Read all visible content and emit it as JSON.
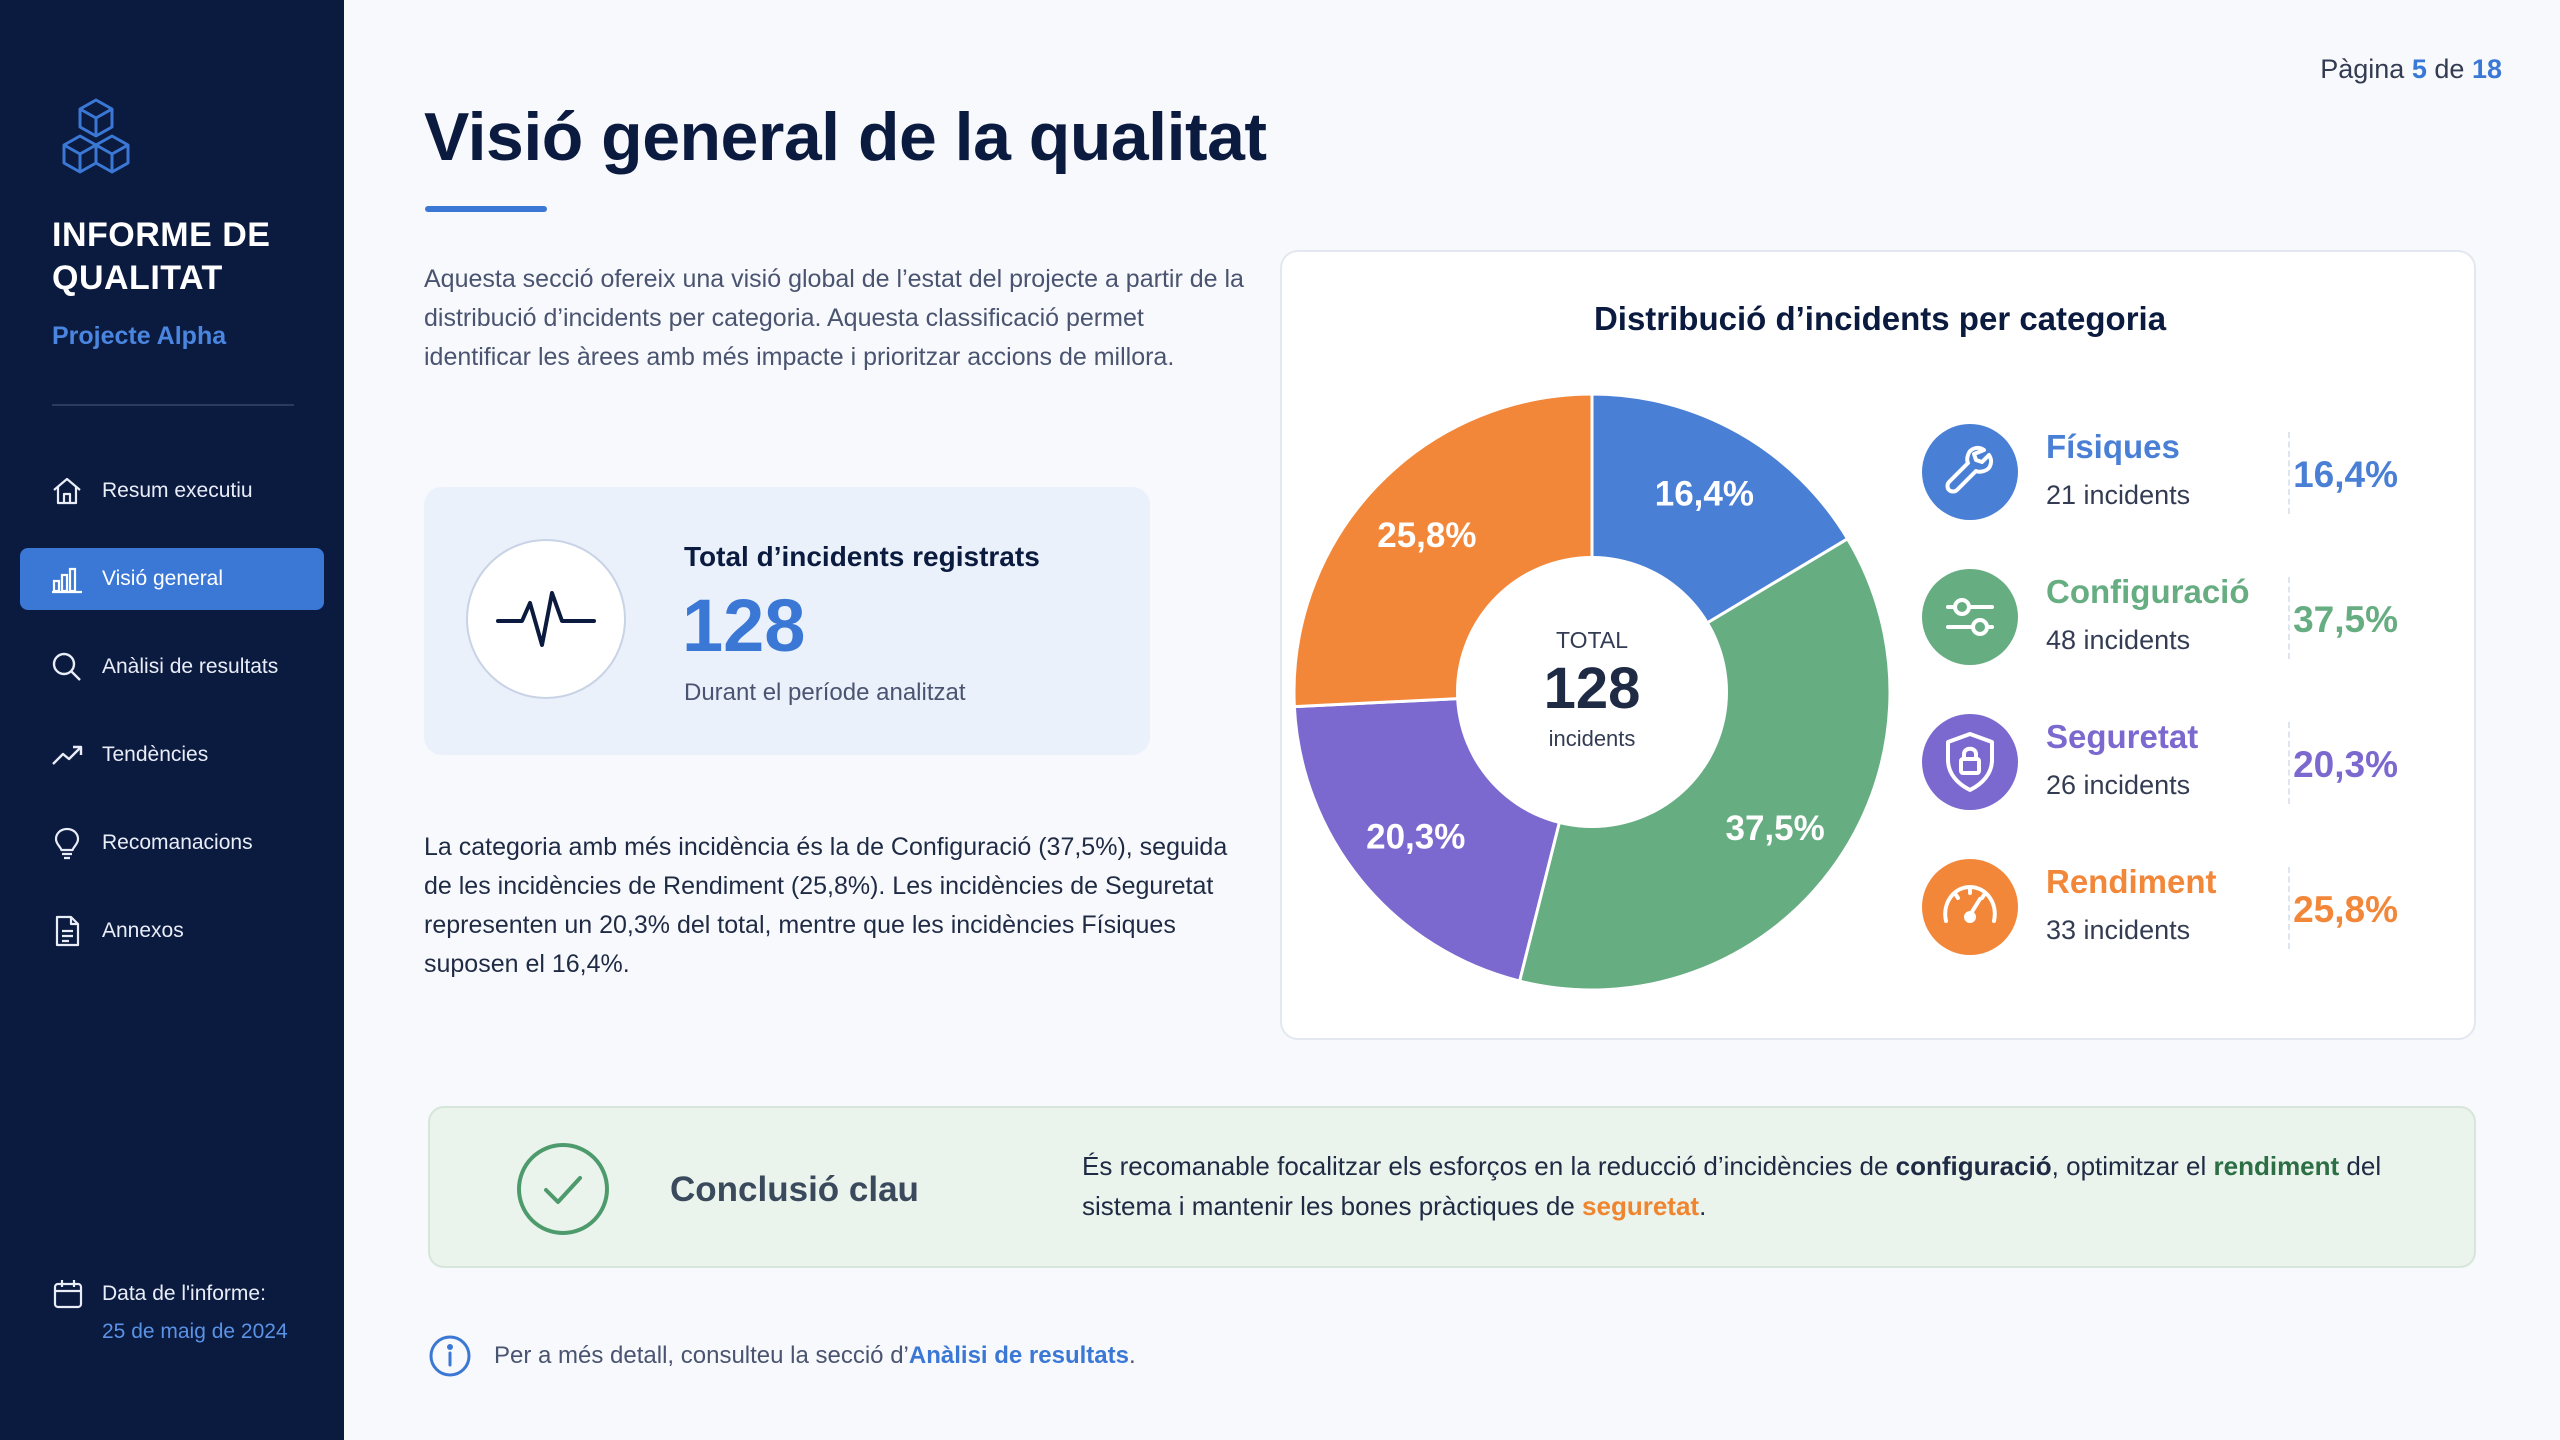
{
  "sidebar": {
    "logo_icon": "cubes-icon",
    "title": "INFORME DE QUALITAT",
    "project": "Projecte Alpha",
    "nav": [
      {
        "label": "Resum executiu",
        "icon": "home-icon",
        "active": false
      },
      {
        "label": "Visió general",
        "icon": "bar-chart-icon",
        "active": true
      },
      {
        "label": "Anàlisi de resultats",
        "icon": "search-icon",
        "active": false
      },
      {
        "label": "Tendències",
        "icon": "trend-icon",
        "active": false
      },
      {
        "label": "Recomanacions",
        "icon": "lightbulb-icon",
        "active": false
      },
      {
        "label": "Annexos",
        "icon": "document-icon",
        "active": false
      }
    ],
    "date_label": "Data de l'informe:",
    "date_value": "25 de maig de 2024"
  },
  "page": {
    "prefix": "Pàgina",
    "current": "5",
    "of": "de",
    "total": "18"
  },
  "title": "Visió general de la qualitat",
  "intro": "Aquesta secció ofereix una visió global de l’estat del projecte a partir de la distribució d’incidents per categoria. Aquesta classificació permet identificar les àrees amb més impacte i prioritzar accions de millora.",
  "total_card": {
    "icon": "pulse-icon",
    "label": "Total d’incidents registrats",
    "value": "128",
    "note": "Durant el període analitzat"
  },
  "analysis": "La categoria amb més incidència és la de Configuració (37,5%), seguida de les incidències de Rendiment (25,8%). Les incidències de Seguretat representen un 20,3% del total, mentre que les incidències Físiques suposen el 16,4%.",
  "chart_data": {
    "type": "pie",
    "title": "Distribució d’incidents per categoria",
    "center": {
      "label": "TOTAL",
      "value": "128",
      "unit": "incidents"
    },
    "slices": [
      {
        "name": "Físiques",
        "count": 21,
        "count_label": "21 incidents",
        "percent": 16.4,
        "percent_label": "16,4%",
        "color": "#4a7fd6",
        "icon": "wrench-icon"
      },
      {
        "name": "Configuració",
        "count": 48,
        "count_label": "48 incidents",
        "percent": 37.5,
        "percent_label": "37,5%",
        "color": "#67ad82",
        "icon": "sliders-icon"
      },
      {
        "name": "Seguretat",
        "count": 26,
        "count_label": "26 incidents",
        "percent": 20.3,
        "percent_label": "20,3%",
        "color": "#7b69cf",
        "icon": "shield-lock-icon"
      },
      {
        "name": "Rendiment",
        "count": 33,
        "count_label": "33 incidents",
        "percent": 25.8,
        "percent_label": "25,8%",
        "color": "#f2873a",
        "icon": "gauge-icon"
      }
    ],
    "legend_placement": "right"
  },
  "conclusion": {
    "icon": "check-circle-icon",
    "title": "Conclusió clau",
    "t1": "És recomanable focalitzar els esforços en la reducció d’incidències de ",
    "k1": "configuració",
    "t2": ", optimitzar el ",
    "k2": "rendiment",
    "t3": " del sistema i mantenir les bones pràctiques de ",
    "k3": "seguretat",
    "t4": "."
  },
  "footnote": {
    "icon": "info-icon",
    "text": "Per a més detall, consulteu la secció d’",
    "link": "Anàlisi de resultats",
    "end": "."
  }
}
